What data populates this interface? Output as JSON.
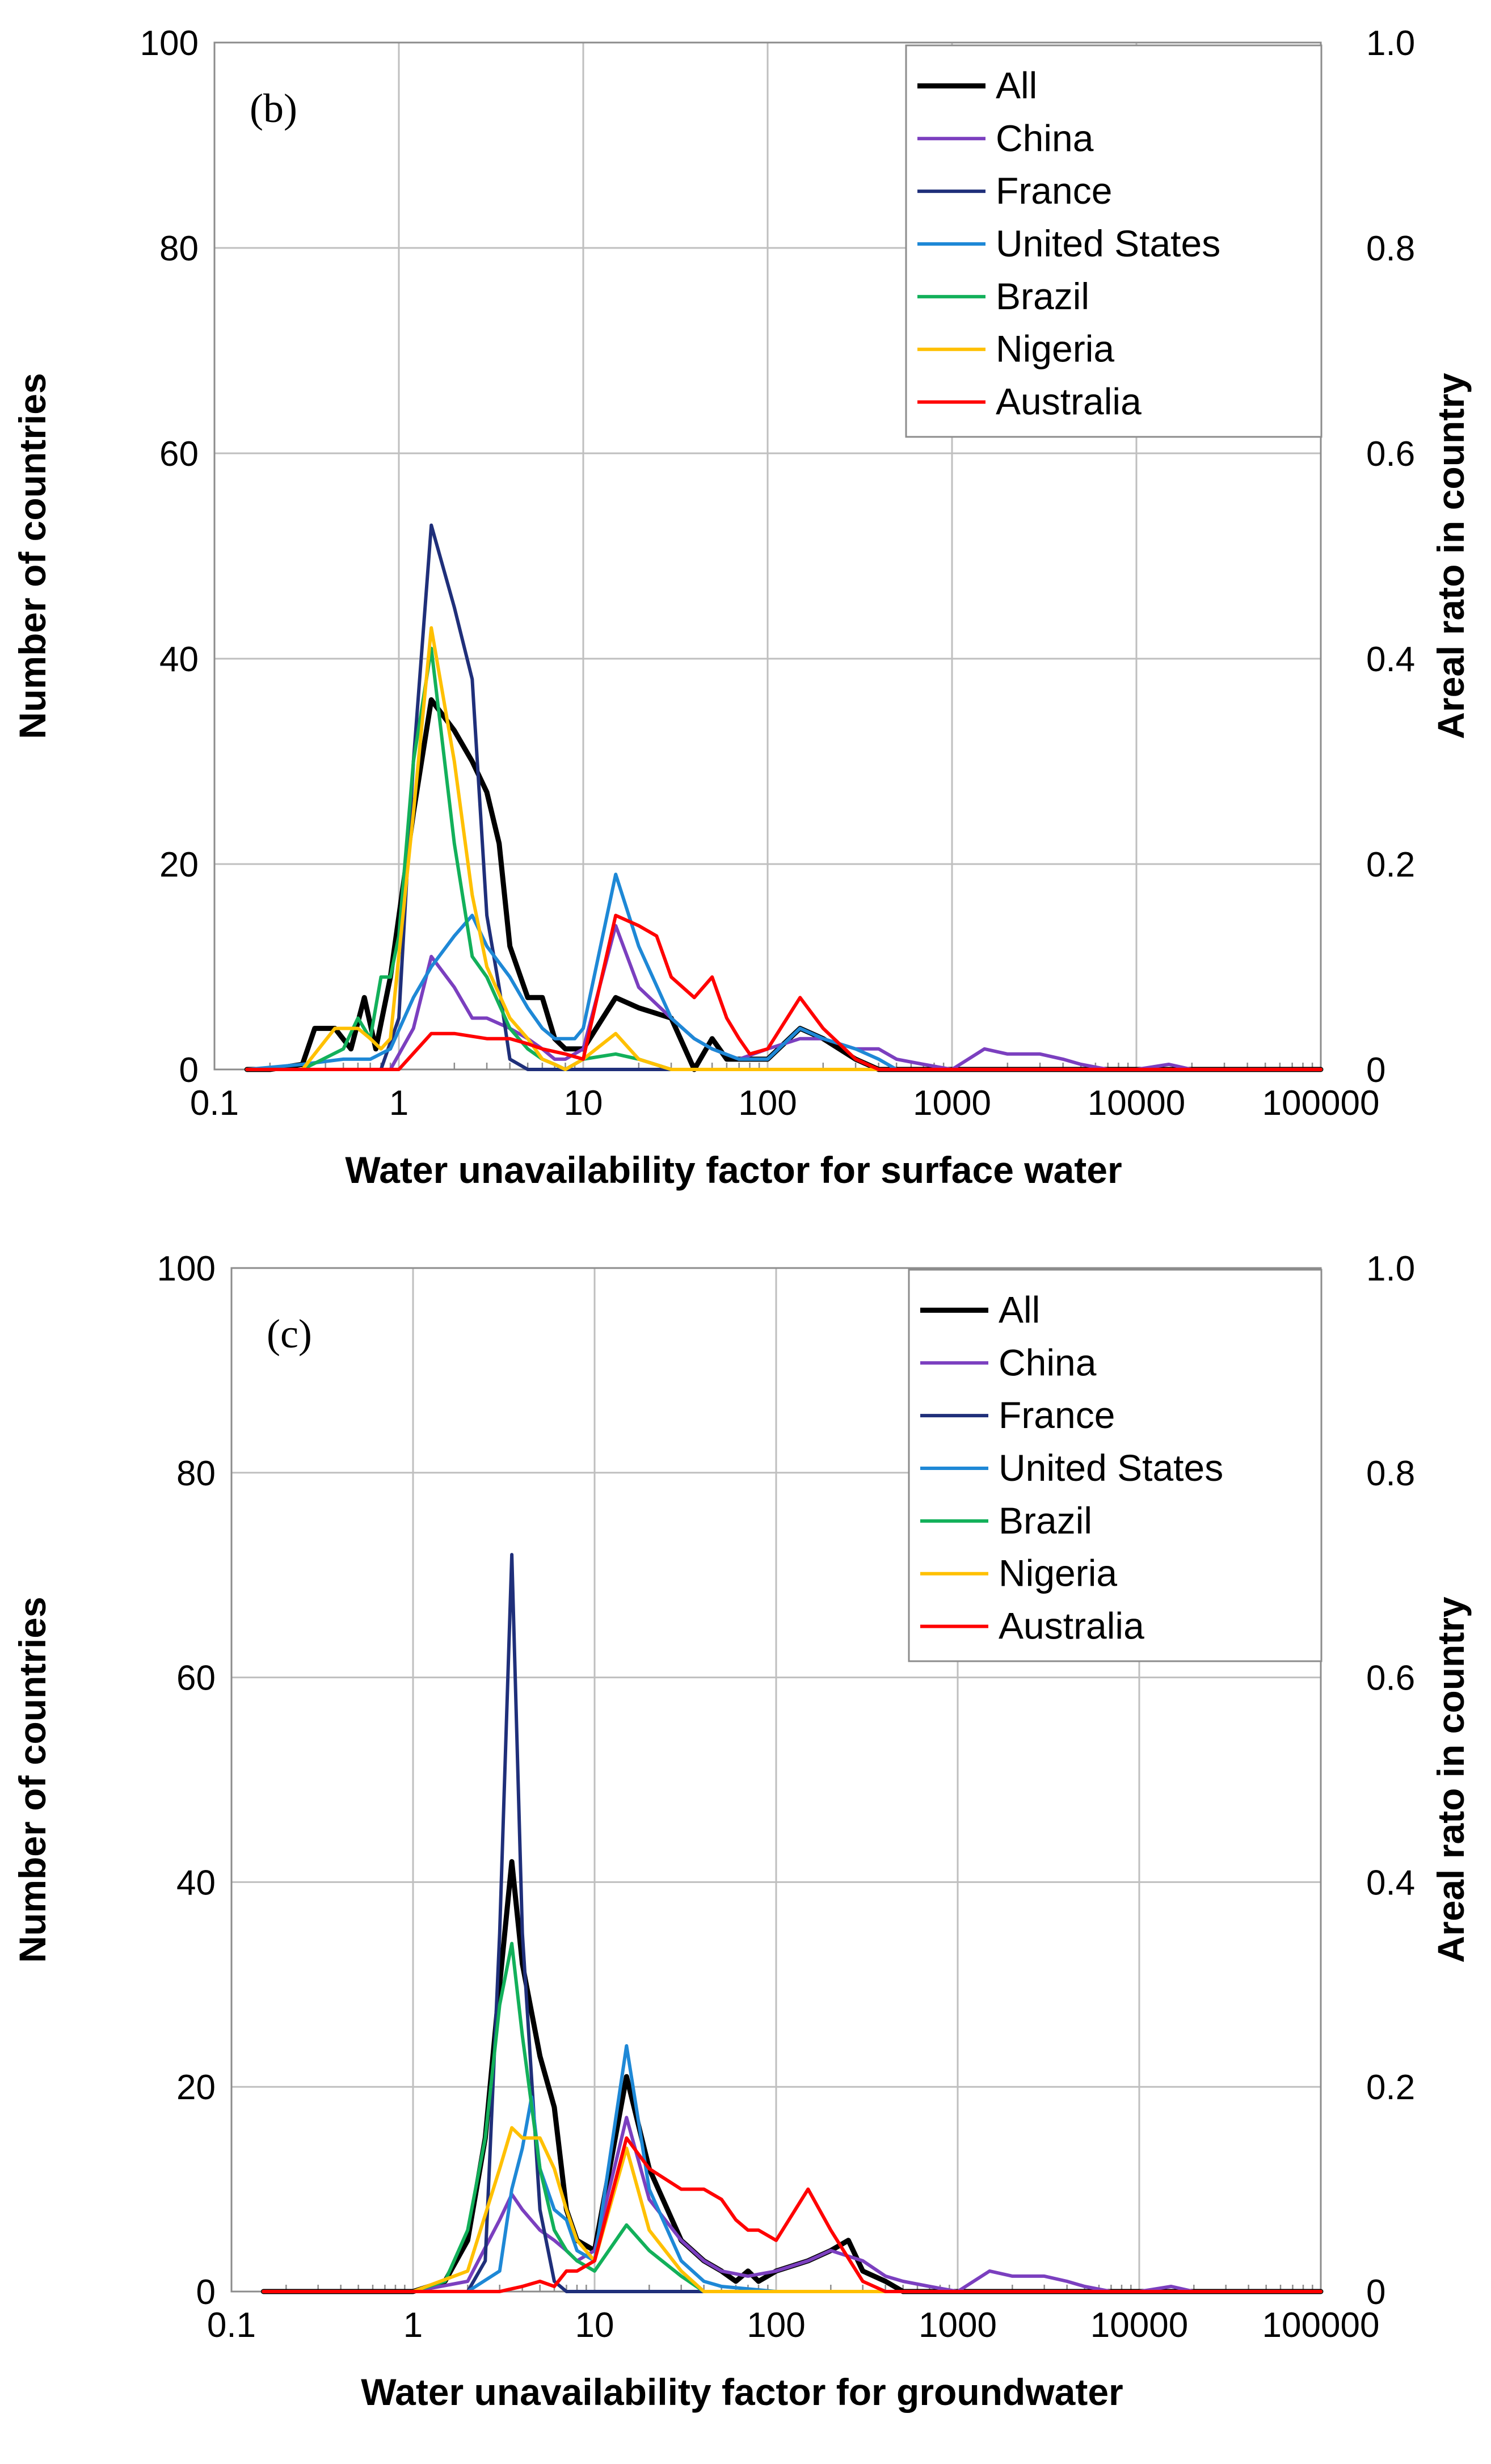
{
  "chart_data": [
    {
      "type": "line",
      "panel_label": "(b)",
      "xlabel": "Water unavailability factor for surface water",
      "ylabel": "Number of countries",
      "y2label": "Areal rato in country",
      "xscale": "log",
      "xlim": [
        0.1,
        100000
      ],
      "ylim": [
        0,
        100
      ],
      "y2lim": [
        0,
        1.0
      ],
      "xticks": [
        "0.1",
        "1",
        "10",
        "100",
        "1000",
        "10000",
        "100000"
      ],
      "yticks": [
        "0",
        "20",
        "40",
        "60",
        "80",
        "100"
      ],
      "y2ticks": [
        "0",
        "0.2",
        "0.4",
        "0.6",
        "0.8",
        "1.0"
      ],
      "grid": true,
      "legend_position": "top-right",
      "series": [
        {
          "name": "All",
          "color": "#000000",
          "width": 4.5,
          "x": [
            0.15,
            0.2,
            0.3,
            0.35,
            0.45,
            0.55,
            0.65,
            0.75,
            0.9,
            1.2,
            1.5,
            2,
            2.5,
            3,
            3.5,
            4,
            5,
            6,
            7,
            8,
            10,
            15,
            20,
            30,
            40,
            50,
            60,
            80,
            100,
            150,
            200,
            300,
            400,
            500,
            1000,
            10000,
            100000
          ],
          "y": [
            0,
            0,
            0.5,
            4,
            4,
            2,
            7,
            2,
            9,
            25,
            36,
            33,
            30,
            27,
            22,
            12,
            7,
            7,
            3,
            2,
            2,
            7,
            6,
            5,
            0,
            3,
            1,
            1,
            1,
            4,
            3,
            1,
            0,
            0,
            0,
            0,
            0
          ]
        },
        {
          "name": "China",
          "color": "#7b3fbf",
          "width": 3,
          "x": [
            0.15,
            0.3,
            0.5,
            0.7,
            0.9,
            1.2,
            1.5,
            2,
            2.5,
            3,
            4,
            5,
            6,
            7,
            8,
            10,
            15,
            20,
            30,
            40,
            50,
            70,
            100,
            150,
            200,
            300,
            400,
            500,
            700,
            1000,
            1500,
            2000,
            3000,
            4000,
            5000,
            7000,
            10000,
            15000,
            20000,
            30000,
            50000,
            100000
          ],
          "y": [
            0,
            0,
            0,
            0,
            0,
            4,
            11,
            8,
            5,
            5,
            4,
            3,
            2,
            1,
            1,
            2,
            14,
            8,
            5,
            3,
            2,
            1,
            2,
            3,
            3,
            2,
            2,
            1,
            0.5,
            0,
            2,
            1.5,
            1.5,
            1,
            0.5,
            0,
            0,
            0.5,
            0,
            0,
            0,
            0
          ]
        },
        {
          "name": "France",
          "color": "#1f2f7a",
          "width": 3,
          "x": [
            0.15,
            0.5,
            0.8,
            1,
            1.2,
            1.5,
            2,
            2.5,
            3,
            3.5,
            4,
            5,
            6,
            8,
            10,
            20,
            100000
          ],
          "y": [
            0,
            0,
            0,
            5,
            30,
            53,
            45,
            38,
            15,
            8,
            1,
            0,
            0,
            0,
            0,
            0,
            0
          ]
        },
        {
          "name": "United States",
          "color": "#1e88d6",
          "width": 3,
          "x": [
            0.15,
            0.3,
            0.5,
            0.7,
            0.9,
            1.2,
            1.5,
            2,
            2.5,
            3,
            4,
            5,
            6,
            7,
            8,
            9,
            10,
            15,
            20,
            30,
            40,
            50,
            70,
            100,
            150,
            200,
            300,
            400,
            500,
            100000
          ],
          "y": [
            0,
            0.5,
            1,
            1,
            2,
            7,
            10,
            13,
            15,
            12,
            9,
            6,
            4,
            3,
            3,
            3,
            4,
            19,
            12,
            5,
            3,
            2,
            1,
            1,
            4,
            3,
            2,
            1,
            0,
            0
          ]
        },
        {
          "name": "Brazil",
          "color": "#12b05a",
          "width": 3,
          "x": [
            0.15,
            0.3,
            0.5,
            0.6,
            0.7,
            0.8,
            0.9,
            1,
            1.2,
            1.5,
            2,
            2.5,
            3,
            4,
            5,
            6,
            7,
            8,
            10,
            15,
            20,
            30,
            100000
          ],
          "y": [
            0,
            0,
            2,
            5,
            3,
            9,
            9,
            13,
            30,
            41,
            22,
            11,
            9,
            4,
            2,
            1,
            0.5,
            0,
            1,
            1.5,
            1,
            0,
            0
          ]
        },
        {
          "name": "Nigeria",
          "color": "#ffc000",
          "width": 3,
          "x": [
            0.15,
            0.3,
            0.45,
            0.6,
            0.7,
            0.8,
            0.9,
            1.2,
            1.5,
            2,
            2.5,
            3,
            4,
            5,
            6,
            7,
            8,
            10,
            15,
            20,
            30,
            100000
          ],
          "y": [
            0,
            0,
            4,
            4,
            3,
            2,
            3,
            25,
            43,
            30,
            17,
            10,
            5,
            3,
            1,
            0.5,
            0,
            1,
            3.5,
            1,
            0,
            0
          ]
        },
        {
          "name": "Australia",
          "color": "#ff0000",
          "width": 3,
          "x": [
            0.15,
            0.5,
            0.9,
            1,
            1.5,
            2,
            3,
            4,
            5,
            6,
            8,
            10,
            15,
            20,
            25,
            30,
            40,
            50,
            60,
            70,
            80,
            100,
            150,
            200,
            300,
            400,
            500,
            1000,
            10000,
            100000
          ],
          "y": [
            0,
            0,
            0,
            0,
            3.5,
            3.5,
            3,
            3,
            2.5,
            2,
            1.5,
            1,
            15,
            14,
            13,
            9,
            7,
            9,
            5,
            3,
            1.5,
            2,
            7,
            4,
            1,
            0,
            0,
            0,
            0,
            0
          ]
        }
      ]
    },
    {
      "type": "line",
      "panel_label": "(c)",
      "xlabel": "Water unavailability factor for groundwater",
      "ylabel": "Number of countries",
      "y2label": "Areal rato in country",
      "xscale": "log",
      "xlim": [
        0.1,
        100000
      ],
      "ylim": [
        0,
        100
      ],
      "y2lim": [
        0,
        1.0
      ],
      "xticks": [
        "0.1",
        "1",
        "10",
        "100",
        "1000",
        "10000",
        "100000"
      ],
      "yticks": [
        "0",
        "20",
        "40",
        "60",
        "80",
        "100"
      ],
      "y2ticks": [
        "0",
        "0.2",
        "0.4",
        "0.6",
        "0.8",
        "1.0"
      ],
      "grid": true,
      "legend_position": "top-right",
      "series": [
        {
          "name": "All",
          "color": "#000000",
          "width": 4.5,
          "x": [
            0.15,
            0.5,
            1,
            1.5,
            2,
            2.5,
            3,
            3.5,
            4,
            5,
            6,
            7,
            8,
            10,
            15,
            20,
            30,
            40,
            50,
            60,
            70,
            80,
            100,
            150,
            200,
            250,
            300,
            400,
            500,
            700,
            1000,
            10000,
            100000
          ],
          "y": [
            0,
            0,
            0,
            1,
            5,
            15,
            30,
            42,
            32,
            23,
            18,
            8,
            5,
            4,
            21,
            12,
            5,
            3,
            2,
            1,
            2,
            1,
            2,
            3,
            4,
            5,
            2,
            1,
            0,
            0,
            0,
            0,
            0
          ]
        },
        {
          "name": "China",
          "color": "#7b3fbf",
          "width": 3,
          "x": [
            0.15,
            1,
            2,
            3,
            3.5,
            4,
            5,
            6,
            7,
            8,
            10,
            15,
            20,
            30,
            40,
            50,
            70,
            100,
            150,
            200,
            300,
            400,
            500,
            700,
            1000,
            1500,
            2000,
            3000,
            4000,
            5000,
            7000,
            10000,
            15000,
            20000,
            30000,
            50000,
            100000
          ],
          "y": [
            0,
            0,
            1,
            7,
            9.5,
            8,
            6,
            5,
            4,
            3,
            4,
            17,
            9,
            5,
            3,
            2,
            1.5,
            2,
            3,
            4,
            3,
            1.5,
            1,
            0.5,
            0,
            2,
            1.5,
            1.5,
            1,
            0.5,
            0,
            0,
            0.5,
            0,
            0,
            0,
            0
          ]
        },
        {
          "name": "France",
          "color": "#1f2f7a",
          "width": 3,
          "x": [
            0.15,
            1,
            2,
            2.5,
            3,
            3.5,
            4,
            5,
            6,
            7,
            8,
            10,
            15,
            20,
            100000
          ],
          "y": [
            0,
            0,
            0,
            3,
            35,
            72,
            35,
            8,
            1,
            0,
            0,
            0,
            0,
            0,
            0
          ]
        },
        {
          "name": "United States",
          "color": "#1e88d6",
          "width": 3,
          "x": [
            0.15,
            1,
            2,
            3,
            3.5,
            4,
            4.5,
            5,
            6,
            7,
            8,
            10,
            15,
            20,
            30,
            40,
            50,
            100,
            200,
            500,
            100000
          ],
          "y": [
            0,
            0,
            0,
            2,
            10,
            14,
            19,
            12,
            8,
            7,
            4,
            3,
            24,
            10,
            3,
            1,
            0.5,
            0,
            0,
            0,
            0
          ]
        },
        {
          "name": "Brazil",
          "color": "#12b05a",
          "width": 3,
          "x": [
            0.15,
            1,
            1.5,
            2,
            2.5,
            3,
            3.5,
            4,
            5,
            6,
            7,
            8,
            10,
            15,
            20,
            30,
            40,
            100000
          ],
          "y": [
            0,
            0,
            1,
            6,
            15,
            28,
            34,
            25,
            12,
            6,
            4,
            3,
            2,
            6.5,
            4,
            1.5,
            0,
            0
          ]
        },
        {
          "name": "Nigeria",
          "color": "#ffc000",
          "width": 3,
          "x": [
            0.15,
            1,
            2,
            3,
            3.5,
            4,
            5,
            6,
            7,
            8,
            10,
            15,
            20,
            30,
            40,
            100000
          ],
          "y": [
            0,
            0,
            2,
            12,
            16,
            15,
            15,
            12,
            8,
            5,
            3,
            14,
            6,
            2,
            0,
            0
          ]
        },
        {
          "name": "Australia",
          "color": "#ff0000",
          "width": 3,
          "x": [
            0.15,
            1,
            2,
            3,
            4,
            5,
            6,
            7,
            8,
            10,
            15,
            20,
            30,
            40,
            50,
            60,
            70,
            80,
            100,
            150,
            200,
            300,
            400,
            500,
            1000,
            10000,
            100000
          ],
          "y": [
            0,
            0,
            0,
            0,
            0.5,
            1,
            0.5,
            2,
            2,
            3,
            15,
            12,
            10,
            10,
            9,
            7,
            6,
            6,
            5,
            10,
            6,
            1,
            0,
            0,
            0,
            0,
            0
          ]
        }
      ]
    }
  ]
}
